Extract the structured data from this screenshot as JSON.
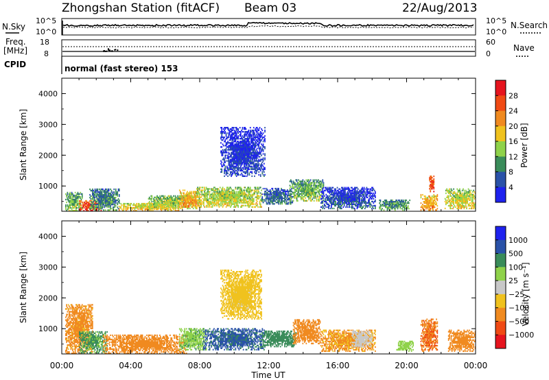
{
  "header": {
    "title": "Zhongshan Station (fitACF)",
    "beam": "Beam 03",
    "date": "22/Aug/2013"
  },
  "strips": {
    "nsky_label": "N.Sky",
    "nsky_ticks": [
      "10^5",
      "10^0"
    ],
    "nsearch_label": "N.Search",
    "nsearch_ticks": [
      "10^5",
      "10^0"
    ],
    "freq_label_1": "Freq.",
    "freq_label_2": "[MHz]",
    "freq_ticks": [
      "18",
      "8"
    ],
    "nave_label": "Nave",
    "nave_ticks": [
      "60",
      "0"
    ],
    "cpid_label": "CPID",
    "cpid_text": "normal (fast stereo) 153"
  },
  "axes": {
    "ylabel": "Slant Range [km]",
    "xlabel": "Time UT",
    "yticks": [
      "1000",
      "2000",
      "3000",
      "4000"
    ],
    "xticks": [
      "00:00",
      "04:00",
      "08:00",
      "12:00",
      "16:00",
      "20:00",
      "00:00"
    ]
  },
  "chart_data": [
    {
      "type": "heatmap",
      "name": "power",
      "x_range_hours": [
        0,
        24
      ],
      "y_range_km": [
        180,
        4500
      ],
      "colorbar_label": "Power [dB]",
      "colorbar_ticks": [
        "4",
        "8",
        "12",
        "16",
        "20",
        "24",
        "28"
      ],
      "colorbar_colors": [
        "#1e22ee",
        "#2a52a8",
        "#3a8c5a",
        "#8fd24a",
        "#f0c21e",
        "#f08a20",
        "#f04a14",
        "#e6141e"
      ],
      "blobs": [
        {
          "t0": 0.2,
          "t1": 1.2,
          "r0": 180,
          "r1": 800,
          "v": 14
        },
        {
          "t0": 1.0,
          "t1": 2.3,
          "r0": 180,
          "r1": 500,
          "v": 28
        },
        {
          "t0": 1.6,
          "t1": 3.3,
          "r0": 200,
          "r1": 900,
          "v": 11
        },
        {
          "t0": 3.3,
          "t1": 6.8,
          "r0": 180,
          "r1": 450,
          "v": 19
        },
        {
          "t0": 5.0,
          "t1": 7.8,
          "r0": 250,
          "r1": 700,
          "v": 16
        },
        {
          "t0": 6.8,
          "t1": 8.0,
          "r0": 300,
          "r1": 850,
          "v": 22
        },
        {
          "t0": 7.8,
          "t1": 11.6,
          "r0": 300,
          "r1": 950,
          "v": 17
        },
        {
          "t0": 9.8,
          "t1": 11.0,
          "r0": 1700,
          "r1": 2300,
          "v": 8
        },
        {
          "t0": 9.2,
          "t1": 11.8,
          "r0": 1300,
          "r1": 2900,
          "v": 5
        },
        {
          "t0": 11.6,
          "t1": 13.4,
          "r0": 400,
          "r1": 900,
          "v": 9
        },
        {
          "t0": 13.2,
          "t1": 15.2,
          "r0": 500,
          "r1": 1200,
          "v": 14
        },
        {
          "t0": 15.0,
          "t1": 18.2,
          "r0": 250,
          "r1": 950,
          "v": 7
        },
        {
          "t0": 18.4,
          "t1": 20.2,
          "r0": 200,
          "r1": 550,
          "v": 12
        },
        {
          "t0": 20.8,
          "t1": 21.8,
          "r0": 200,
          "r1": 700,
          "v": 22
        },
        {
          "t0": 21.3,
          "t1": 21.6,
          "r0": 800,
          "r1": 1300,
          "v": 28
        },
        {
          "t0": 22.2,
          "t1": 24.0,
          "r0": 250,
          "r1": 900,
          "v": 18
        }
      ]
    },
    {
      "type": "heatmap",
      "name": "velocity",
      "x_range_hours": [
        0,
        24
      ],
      "y_range_km": [
        180,
        4500
      ],
      "colorbar_label": "Velocity [m s⁻¹]",
      "colorbar_ticks": [
        "1000",
        "500",
        "100",
        "25",
        "−25",
        "−100",
        "−500",
        "−1000"
      ],
      "colorbar_colors": [
        "#1e22ee",
        "#2a52a8",
        "#3a8c5a",
        "#8fd24a",
        "#c8c8c8",
        "#f0c21e",
        "#f08a20",
        "#f04a14",
        "#e6141e"
      ],
      "blobs": [
        {
          "t0": 0.2,
          "t1": 1.8,
          "r0": 180,
          "r1": 1800,
          "v": -150
        },
        {
          "t0": 1.0,
          "t1": 2.6,
          "r0": 200,
          "r1": 900,
          "v": 120
        },
        {
          "t0": 2.4,
          "t1": 7.2,
          "r0": 180,
          "r1": 800,
          "v": -350
        },
        {
          "t0": 6.8,
          "t1": 8.4,
          "r0": 300,
          "r1": 1000,
          "v": 80
        },
        {
          "t0": 8.2,
          "t1": 11.8,
          "r0": 300,
          "r1": 1000,
          "v": 650
        },
        {
          "t0": 9.8,
          "t1": 11.0,
          "r0": 1600,
          "r1": 2300,
          "v": 10
        },
        {
          "t0": 9.2,
          "t1": 11.6,
          "r0": 1300,
          "r1": 2900,
          "v": -60
        },
        {
          "t0": 11.6,
          "t1": 13.6,
          "r0": 400,
          "r1": 900,
          "v": 200
        },
        {
          "t0": 13.4,
          "t1": 15.0,
          "r0": 500,
          "r1": 1300,
          "v": -300
        },
        {
          "t0": 15.0,
          "t1": 18.2,
          "r0": 250,
          "r1": 950,
          "v": -120
        },
        {
          "t0": 16.8,
          "t1": 18.0,
          "r0": 400,
          "r1": 900,
          "v": 15
        },
        {
          "t0": 19.4,
          "t1": 20.4,
          "r0": 250,
          "r1": 600,
          "v": 60
        },
        {
          "t0": 20.8,
          "t1": 21.8,
          "r0": 250,
          "r1": 1300,
          "v": -450
        },
        {
          "t0": 22.4,
          "t1": 24.0,
          "r0": 250,
          "r1": 950,
          "v": -200
        }
      ]
    }
  ]
}
